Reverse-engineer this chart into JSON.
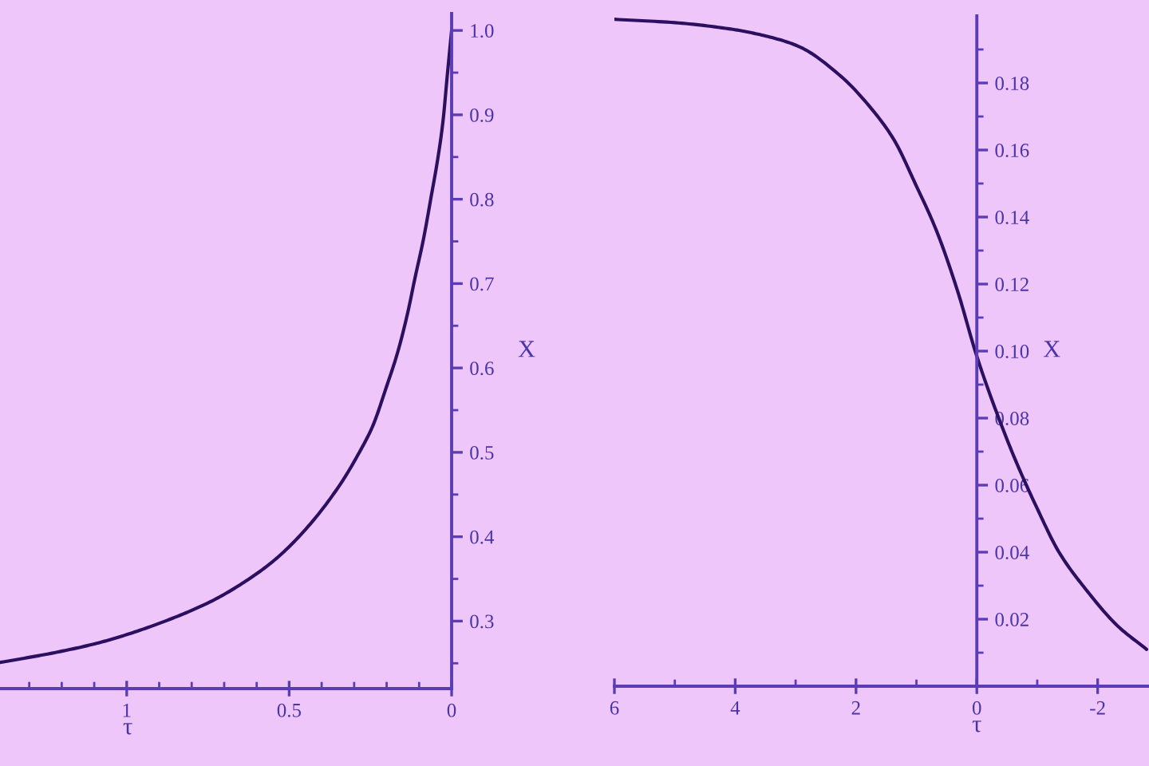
{
  "chart_data": [
    {
      "type": "line",
      "xlabel": "τ",
      "ylabel": "X",
      "color": "#2c1060",
      "x": [
        0,
        0.013,
        0.027,
        0.043,
        0.063,
        0.087,
        0.112,
        0.136,
        0.165,
        0.202,
        0.243,
        0.284,
        0.343,
        0.442,
        0.54,
        0.639,
        0.737,
        0.868,
        1.0,
        1.099,
        1.23,
        1.39
      ],
      "values": [
        1.0,
        0.948,
        0.891,
        0.847,
        0.803,
        0.752,
        0.708,
        0.664,
        0.62,
        0.576,
        0.531,
        0.5,
        0.462,
        0.412,
        0.374,
        0.346,
        0.324,
        0.302,
        0.284,
        0.273,
        0.262,
        0.251
      ],
      "xlim": [
        1.39,
        0
      ],
      "ylim": [
        0.22,
        1.02
      ],
      "xticks": [
        0,
        {
          "value": 0.1,
          "label": null
        },
        {
          "value": 0.2,
          "label": null
        },
        {
          "value": 0.3,
          "label": null
        },
        {
          "value": 0.4,
          "label": null
        },
        0.5,
        {
          "value": 0.6,
          "label": null
        },
        {
          "value": 0.7,
          "label": null
        },
        {
          "value": 0.8,
          "label": null
        },
        {
          "value": 0.9,
          "label": null
        },
        1,
        {
          "value": 1.1,
          "label": null
        },
        {
          "value": 1.2,
          "label": null
        },
        {
          "value": 1.3,
          "label": null
        }
      ],
      "yticks": [
        {
          "value": 0.25,
          "label": null
        },
        0.3,
        {
          "value": 0.35,
          "label": null
        },
        0.4,
        {
          "value": 0.45,
          "label": null
        },
        0.5,
        {
          "value": 0.55,
          "label": null
        },
        0.6,
        {
          "value": 0.65,
          "label": null
        },
        0.7,
        {
          "value": 0.75,
          "label": null
        },
        0.8,
        {
          "value": 0.85,
          "label": null
        },
        0.9,
        {
          "value": 0.95,
          "label": null
        },
        {
          "value": 1.0,
          "label": "1.0"
        }
      ]
    },
    {
      "type": "line",
      "xlabel": "τ",
      "ylabel": "X",
      "color": "#2c1060",
      "x": [
        6.0,
        5.0,
        4.04,
        3.49,
        2.96,
        2.25,
        1.73,
        1.37,
        1.02,
        0.67,
        0.32,
        0.01,
        -0.3,
        -0.65,
        -1.0,
        -1.36,
        -1.8,
        -2.33,
        -2.81
      ],
      "values": [
        0.199,
        0.198,
        0.196,
        0.194,
        0.191,
        0.182,
        0.172,
        0.163,
        0.15,
        0.136,
        0.118,
        0.099,
        0.083,
        0.067,
        0.053,
        0.04,
        0.029,
        0.018,
        0.011
      ],
      "xlim": [
        6,
        -2.85
      ],
      "ylim": [
        0,
        0.2
      ],
      "xticks": [
        6,
        {
          "value": 5,
          "label": null
        },
        4,
        {
          "value": 3,
          "label": null
        },
        2,
        {
          "value": 1,
          "label": null
        },
        0,
        {
          "value": -1,
          "label": null
        },
        -2
      ],
      "yticks": [
        {
          "value": 0.01,
          "label": null
        },
        0.02,
        {
          "value": 0.03,
          "label": null
        },
        0.04,
        {
          "value": 0.05,
          "label": null
        },
        0.06,
        {
          "value": 0.07,
          "label": null
        },
        0.08,
        {
          "value": 0.09,
          "label": null
        },
        {
          "value": 0.1,
          "label": "0.10"
        },
        {
          "value": 0.11,
          "label": null
        },
        0.12,
        {
          "value": 0.13,
          "label": null
        },
        0.14,
        {
          "value": 0.15,
          "label": null
        },
        0.16,
        {
          "value": 0.17,
          "label": null
        },
        0.18,
        {
          "value": 0.19,
          "label": null
        }
      ]
    }
  ]
}
